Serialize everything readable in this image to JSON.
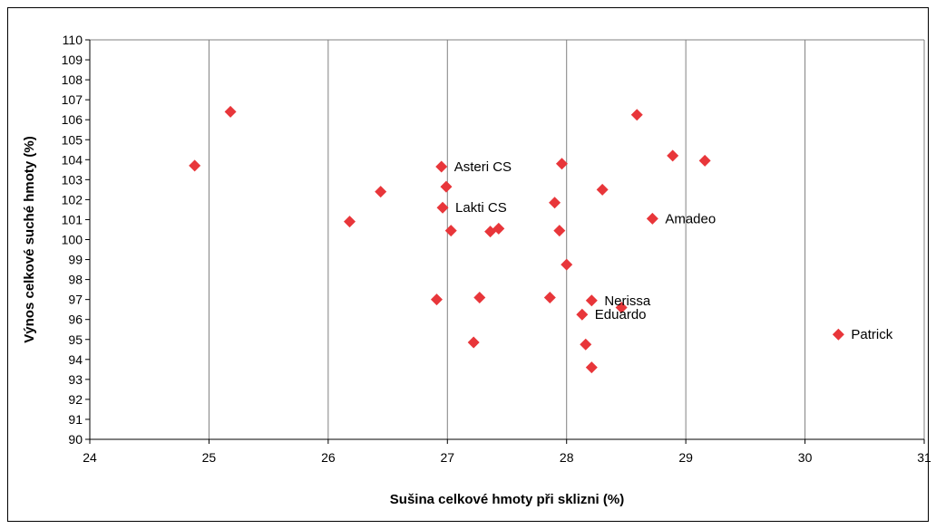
{
  "chart_data": {
    "type": "scatter",
    "title": "",
    "xlabel": "Sušina celkové hmoty při sklizni (%)",
    "ylabel": "Výnos celkové suché hmoty (%)",
    "xlim": [
      24,
      31
    ],
    "ylim": [
      90,
      110
    ],
    "xticks": [
      24,
      25,
      26,
      27,
      28,
      29,
      30,
      31
    ],
    "yticks": [
      90,
      91,
      92,
      93,
      94,
      95,
      96,
      97,
      98,
      99,
      100,
      101,
      102,
      103,
      104,
      105,
      106,
      107,
      108,
      109,
      110
    ],
    "grid": "vertical",
    "marker_color": "#e8363a",
    "points": [
      {
        "x": 24.88,
        "y": 103.7,
        "label": ""
      },
      {
        "x": 25.18,
        "y": 106.4,
        "label": ""
      },
      {
        "x": 26.18,
        "y": 100.9,
        "label": ""
      },
      {
        "x": 26.44,
        "y": 102.4,
        "label": ""
      },
      {
        "x": 26.91,
        "y": 97.0,
        "label": ""
      },
      {
        "x": 26.95,
        "y": 103.65,
        "label": "Asteri CS"
      },
      {
        "x": 26.96,
        "y": 101.6,
        "label": "Lakti CS"
      },
      {
        "x": 26.99,
        "y": 102.65,
        "label": ""
      },
      {
        "x": 27.03,
        "y": 100.45,
        "label": ""
      },
      {
        "x": 27.22,
        "y": 94.85,
        "label": ""
      },
      {
        "x": 27.27,
        "y": 97.1,
        "label": ""
      },
      {
        "x": 27.36,
        "y": 100.4,
        "label": ""
      },
      {
        "x": 27.43,
        "y": 100.55,
        "label": ""
      },
      {
        "x": 27.86,
        "y": 97.1,
        "label": ""
      },
      {
        "x": 27.9,
        "y": 101.85,
        "label": ""
      },
      {
        "x": 27.94,
        "y": 100.45,
        "label": ""
      },
      {
        "x": 27.96,
        "y": 103.8,
        "label": ""
      },
      {
        "x": 28.0,
        "y": 98.75,
        "label": ""
      },
      {
        "x": 28.13,
        "y": 96.25,
        "label": "Eduardo"
      },
      {
        "x": 28.16,
        "y": 94.75,
        "label": ""
      },
      {
        "x": 28.21,
        "y": 96.95,
        "label": "Nerissa"
      },
      {
        "x": 28.21,
        "y": 93.6,
        "label": ""
      },
      {
        "x": 28.3,
        "y": 102.5,
        "label": ""
      },
      {
        "x": 28.46,
        "y": 96.6,
        "label": ""
      },
      {
        "x": 28.59,
        "y": 106.25,
        "label": ""
      },
      {
        "x": 28.72,
        "y": 101.05,
        "label": "Amadeo"
      },
      {
        "x": 28.89,
        "y": 104.2,
        "label": ""
      },
      {
        "x": 29.16,
        "y": 103.95,
        "label": ""
      },
      {
        "x": 30.28,
        "y": 95.25,
        "label": "Patrick"
      }
    ]
  }
}
